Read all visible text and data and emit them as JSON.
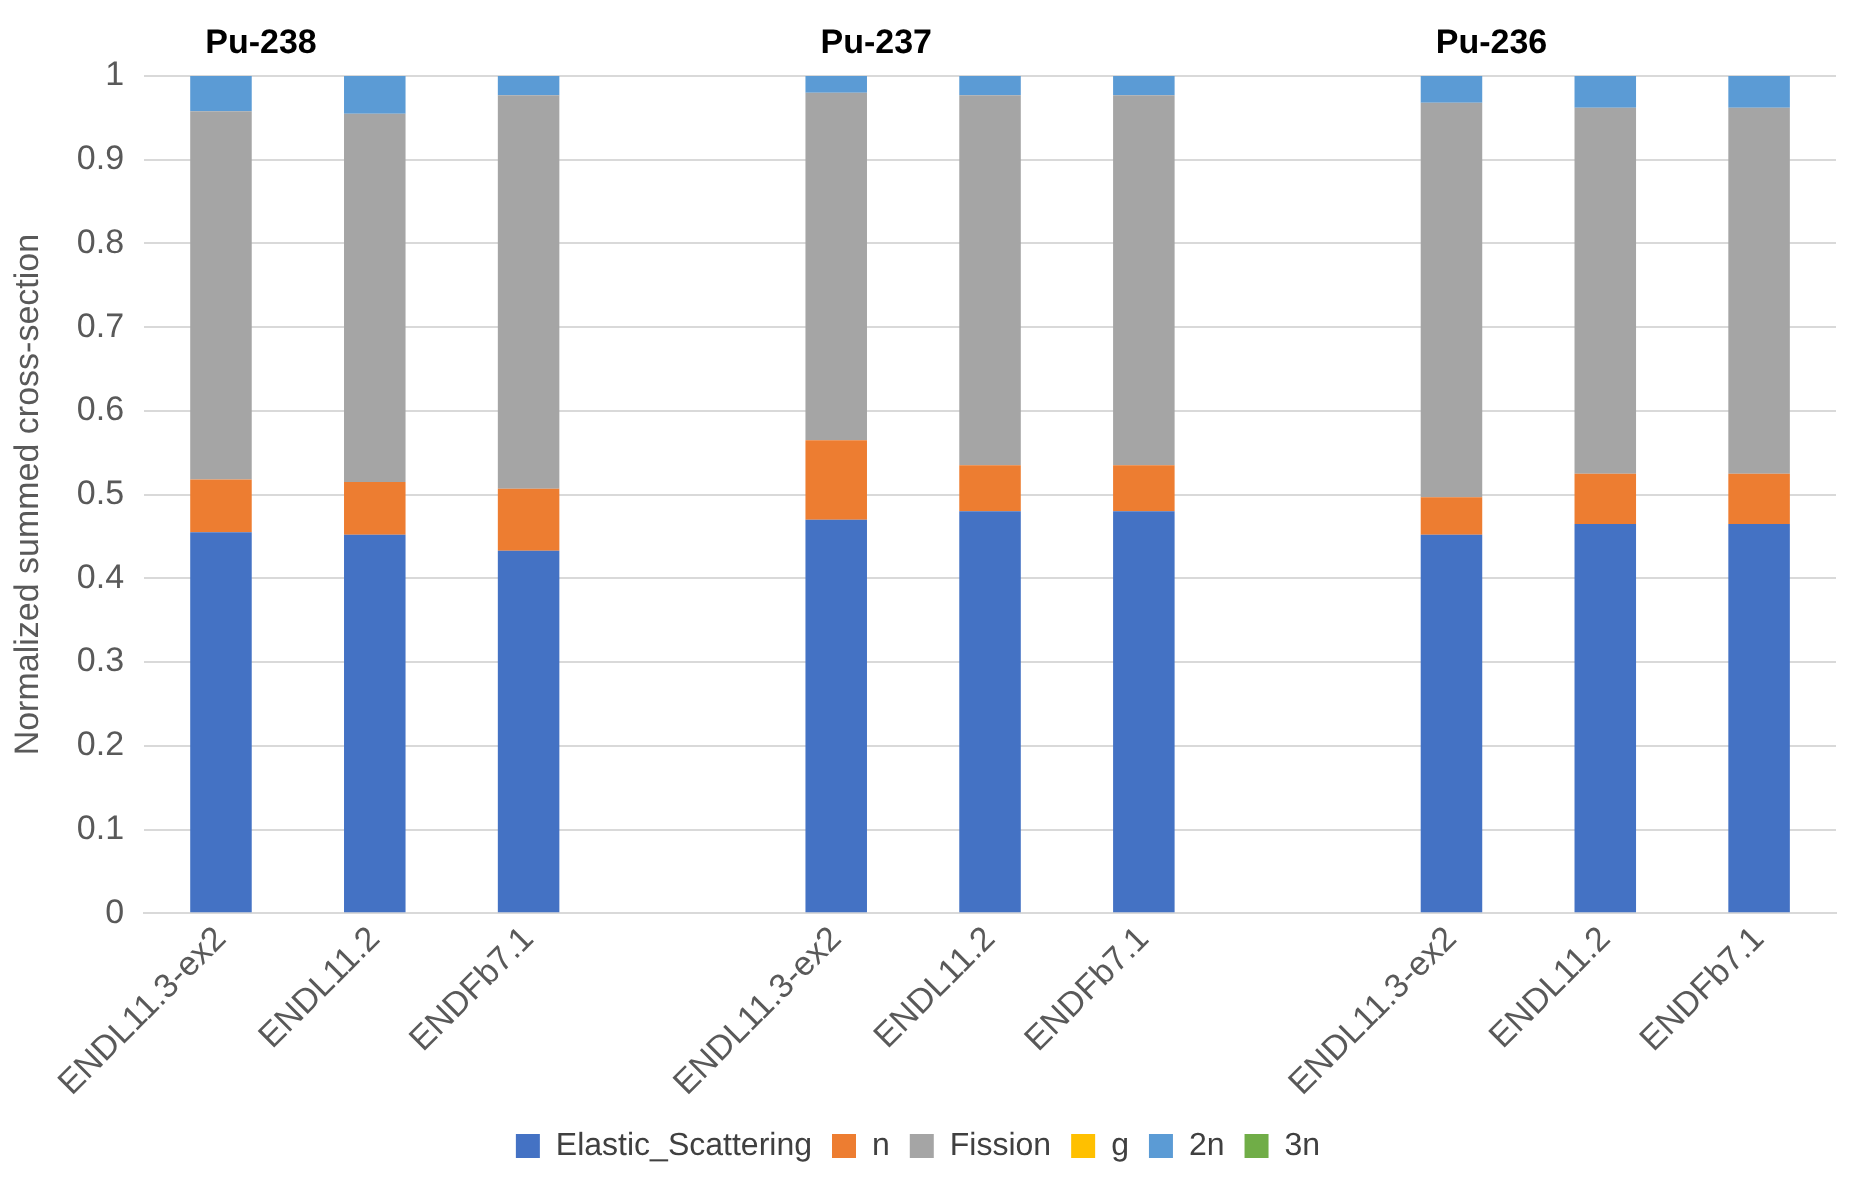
{
  "chart_data": {
    "type": "bar",
    "stacked": true,
    "ylabel": "Normalized summed cross-section",
    "categories": [
      "ENDL11.3-ex2",
      "ENDL11.2",
      "ENDFb7.1",
      null,
      "ENDL11.3-ex2",
      "ENDL11.2",
      "ENDFb7.1",
      null,
      "ENDL11.3-ex2",
      "ENDL11.2",
      "ENDFb7.1"
    ],
    "series": [
      {
        "name": "Elastic_Scattering",
        "color": "#4472c4",
        "values": [
          0.455,
          0.452,
          0.433,
          null,
          0.47,
          0.48,
          0.48,
          null,
          0.452,
          0.465,
          0.465
        ]
      },
      {
        "name": "n",
        "color": "#ed7d31",
        "values": [
          0.063,
          0.063,
          0.074,
          null,
          0.095,
          0.055,
          0.055,
          null,
          0.045,
          0.06,
          0.06
        ]
      },
      {
        "name": "Fission",
        "color": "#a5a5a5",
        "values": [
          0.44,
          0.44,
          0.47,
          null,
          0.415,
          0.442,
          0.442,
          null,
          0.471,
          0.437,
          0.437
        ]
      },
      {
        "name": "g",
        "color": "#ffc000",
        "values": [
          0,
          0,
          0,
          null,
          0,
          0,
          0,
          null,
          0,
          0,
          0
        ]
      },
      {
        "name": "2n",
        "color": "#5b9bd5",
        "values": [
          0.042,
          0.045,
          0.023,
          null,
          0.02,
          0.023,
          0.023,
          null,
          0.032,
          0.038,
          0.038
        ]
      },
      {
        "name": "3n",
        "color": "#70ad47",
        "values": [
          0,
          0,
          0,
          null,
          0,
          0,
          0,
          null,
          0,
          0,
          0
        ]
      }
    ],
    "ylim": [
      0,
      1
    ],
    "yticks": [
      0,
      0.1,
      0.2,
      0.3,
      0.4,
      0.5,
      0.6,
      0.7,
      0.8,
      0.9,
      1
    ],
    "grid": "y",
    "legend": "bottom",
    "annotations": [
      "Pu-238",
      "Pu-237",
      "Pu-236"
    ]
  }
}
